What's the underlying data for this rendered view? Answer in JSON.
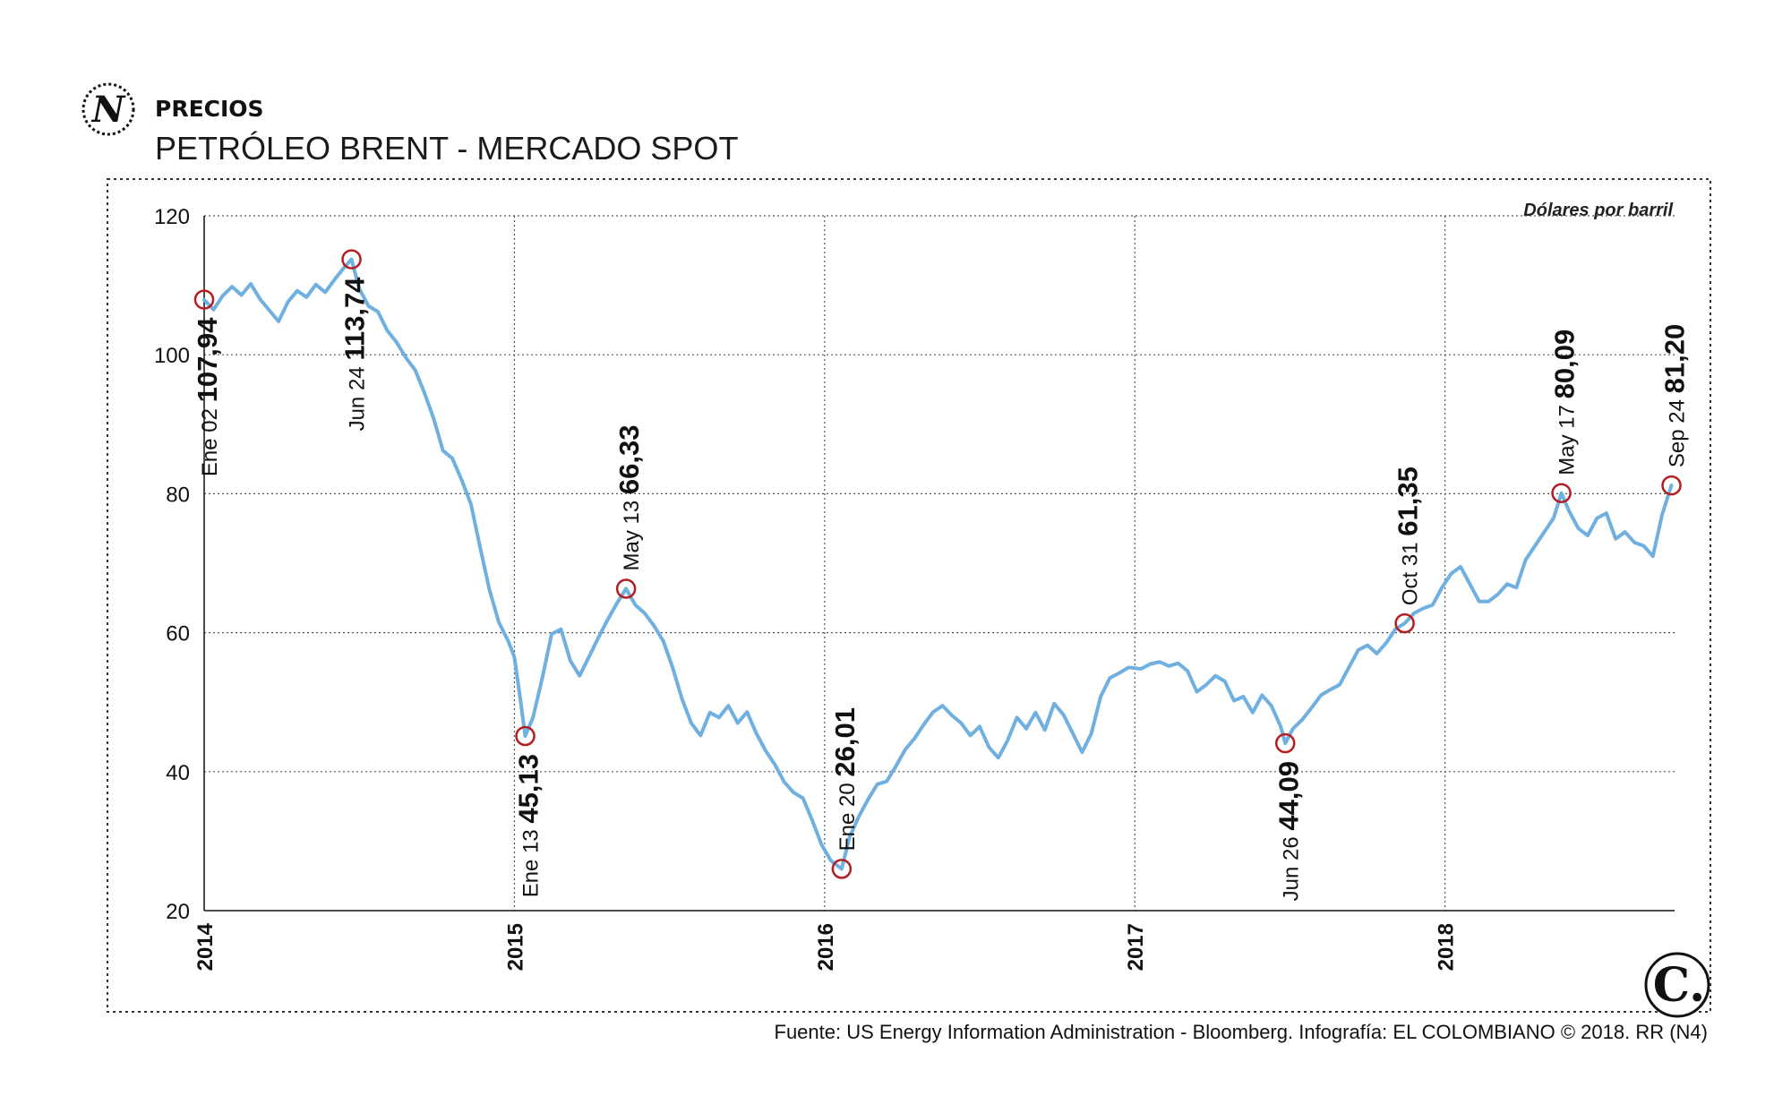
{
  "header": {
    "section": "PRECIOS",
    "title": "PETRÓLEO BRENT - MERCADO SPOT",
    "section_logo_letter": "N"
  },
  "chart_data": {
    "type": "line",
    "title": "PETRÓLEO BRENT - MERCADO SPOT",
    "unit_label": "Dólares por barril",
    "xlim": [
      2014.0,
      2018.74
    ],
    "ylim": [
      20,
      120
    ],
    "x_ticks": [
      "2014",
      "2015",
      "2016",
      "2017",
      "2018"
    ],
    "y_ticks": [
      "20",
      "40",
      "60",
      "80",
      "100",
      "120"
    ],
    "grid": true,
    "line_color": "#6fb0e0",
    "marker_color": "#b51d22",
    "series": [
      {
        "values": [
          [
            2014.0,
            107.9
          ],
          [
            2014.03,
            106.5
          ],
          [
            2014.06,
            108.5
          ],
          [
            2014.09,
            109.8
          ],
          [
            2014.12,
            108.6
          ],
          [
            2014.15,
            110.2
          ],
          [
            2014.18,
            108.0
          ],
          [
            2014.21,
            106.4
          ],
          [
            2014.24,
            104.8
          ],
          [
            2014.27,
            107.6
          ],
          [
            2014.3,
            109.2
          ],
          [
            2014.33,
            108.3
          ],
          [
            2014.36,
            110.1
          ],
          [
            2014.39,
            109.0
          ],
          [
            2014.42,
            110.8
          ],
          [
            2014.45,
            112.5
          ],
          [
            2014.475,
            113.74
          ],
          [
            2014.5,
            109.5
          ],
          [
            2014.53,
            107.0
          ],
          [
            2014.56,
            106.2
          ],
          [
            2014.59,
            103.5
          ],
          [
            2014.62,
            101.8
          ],
          [
            2014.65,
            99.6
          ],
          [
            2014.68,
            97.8
          ],
          [
            2014.71,
            94.5
          ],
          [
            2014.74,
            90.8
          ],
          [
            2014.77,
            86.2
          ],
          [
            2014.8,
            85.1
          ],
          [
            2014.83,
            82.0
          ],
          [
            2014.86,
            78.5
          ],
          [
            2014.89,
            72.2
          ],
          [
            2014.92,
            66.1
          ],
          [
            2014.95,
            61.5
          ],
          [
            2014.98,
            58.8
          ],
          [
            2015.0,
            56.5
          ],
          [
            2015.02,
            50.2
          ],
          [
            2015.035,
            45.13
          ],
          [
            2015.06,
            47.8
          ],
          [
            2015.09,
            53.5
          ],
          [
            2015.12,
            59.8
          ],
          [
            2015.15,
            60.5
          ],
          [
            2015.18,
            56.0
          ],
          [
            2015.21,
            53.8
          ],
          [
            2015.24,
            56.5
          ],
          [
            2015.27,
            59.2
          ],
          [
            2015.3,
            61.8
          ],
          [
            2015.33,
            64.2
          ],
          [
            2015.36,
            66.33
          ],
          [
            2015.39,
            64.0
          ],
          [
            2015.42,
            62.8
          ],
          [
            2015.45,
            61.0
          ],
          [
            2015.48,
            58.8
          ],
          [
            2015.51,
            55.0
          ],
          [
            2015.54,
            50.5
          ],
          [
            2015.57,
            47.0
          ],
          [
            2015.6,
            45.2
          ],
          [
            2015.63,
            48.5
          ],
          [
            2015.66,
            47.8
          ],
          [
            2015.69,
            49.5
          ],
          [
            2015.72,
            47.0
          ],
          [
            2015.75,
            48.6
          ],
          [
            2015.78,
            45.5
          ],
          [
            2015.81,
            43.0
          ],
          [
            2015.84,
            41.0
          ],
          [
            2015.87,
            38.5
          ],
          [
            2015.9,
            37.0
          ],
          [
            2015.93,
            36.2
          ],
          [
            2015.96,
            33.0
          ],
          [
            2015.99,
            29.5
          ],
          [
            2016.02,
            27.2
          ],
          [
            2016.055,
            26.01
          ],
          [
            2016.08,
            30.5
          ],
          [
            2016.11,
            33.5
          ],
          [
            2016.14,
            36.0
          ],
          [
            2016.17,
            38.2
          ],
          [
            2016.2,
            38.6
          ],
          [
            2016.23,
            40.8
          ],
          [
            2016.26,
            43.2
          ],
          [
            2016.29,
            44.8
          ],
          [
            2016.32,
            46.8
          ],
          [
            2016.35,
            48.6
          ],
          [
            2016.38,
            49.5
          ],
          [
            2016.41,
            48.1
          ],
          [
            2016.44,
            47.0
          ],
          [
            2016.47,
            45.2
          ],
          [
            2016.5,
            46.5
          ],
          [
            2016.53,
            43.5
          ],
          [
            2016.56,
            42.0
          ],
          [
            2016.59,
            44.5
          ],
          [
            2016.62,
            47.8
          ],
          [
            2016.65,
            46.2
          ],
          [
            2016.68,
            48.5
          ],
          [
            2016.71,
            46.0
          ],
          [
            2016.74,
            49.8
          ],
          [
            2016.77,
            48.2
          ],
          [
            2016.8,
            45.5
          ],
          [
            2016.83,
            42.8
          ],
          [
            2016.86,
            45.5
          ],
          [
            2016.89,
            50.8
          ],
          [
            2016.92,
            53.5
          ],
          [
            2016.95,
            54.2
          ],
          [
            2016.98,
            55.0
          ],
          [
            2017.02,
            54.8
          ],
          [
            2017.05,
            55.5
          ],
          [
            2017.08,
            55.8
          ],
          [
            2017.11,
            55.2
          ],
          [
            2017.14,
            55.6
          ],
          [
            2017.17,
            54.5
          ],
          [
            2017.2,
            51.5
          ],
          [
            2017.23,
            52.5
          ],
          [
            2017.26,
            53.8
          ],
          [
            2017.29,
            53.0
          ],
          [
            2017.32,
            50.2
          ],
          [
            2017.35,
            50.8
          ],
          [
            2017.38,
            48.5
          ],
          [
            2017.41,
            51.0
          ],
          [
            2017.44,
            49.5
          ],
          [
            2017.47,
            46.5
          ],
          [
            2017.485,
            44.09
          ],
          [
            2017.51,
            46.2
          ],
          [
            2017.54,
            47.5
          ],
          [
            2017.57,
            49.2
          ],
          [
            2017.6,
            51.0
          ],
          [
            2017.63,
            51.8
          ],
          [
            2017.66,
            52.5
          ],
          [
            2017.69,
            55.0
          ],
          [
            2017.72,
            57.5
          ],
          [
            2017.75,
            58.2
          ],
          [
            2017.78,
            57.0
          ],
          [
            2017.81,
            58.5
          ],
          [
            2017.84,
            60.5
          ],
          [
            2017.87,
            61.35
          ],
          [
            2017.9,
            62.8
          ],
          [
            2017.93,
            63.5
          ],
          [
            2017.96,
            64.0
          ],
          [
            2017.99,
            66.5
          ],
          [
            2018.02,
            68.5
          ],
          [
            2018.05,
            69.5
          ],
          [
            2018.08,
            67.0
          ],
          [
            2018.11,
            64.5
          ],
          [
            2018.14,
            64.5
          ],
          [
            2018.17,
            65.5
          ],
          [
            2018.2,
            67.0
          ],
          [
            2018.23,
            66.5
          ],
          [
            2018.26,
            70.5
          ],
          [
            2018.29,
            72.5
          ],
          [
            2018.32,
            74.5
          ],
          [
            2018.35,
            76.5
          ],
          [
            2018.375,
            80.09
          ],
          [
            2018.4,
            77.5
          ],
          [
            2018.43,
            75.0
          ],
          [
            2018.46,
            74.0
          ],
          [
            2018.49,
            76.5
          ],
          [
            2018.52,
            77.2
          ],
          [
            2018.55,
            73.5
          ],
          [
            2018.58,
            74.5
          ],
          [
            2018.61,
            73.0
          ],
          [
            2018.64,
            72.5
          ],
          [
            2018.67,
            71.0
          ],
          [
            2018.7,
            77.0
          ],
          [
            2018.73,
            81.2
          ]
        ]
      }
    ],
    "annotations": [
      {
        "date": "Ene 02",
        "value": "107,94",
        "x": 2014.0,
        "y": 107.94,
        "label_pos": "below"
      },
      {
        "date": "Jun 24",
        "value": "113,74",
        "x": 2014.475,
        "y": 113.74,
        "label_pos": "below"
      },
      {
        "date": "Ene 13",
        "value": "45,13",
        "x": 2015.035,
        "y": 45.13,
        "label_pos": "below"
      },
      {
        "date": "May 13",
        "value": "66,33",
        "x": 2015.36,
        "y": 66.33,
        "label_pos": "above"
      },
      {
        "date": "Ene 20",
        "value": "26,01",
        "x": 2016.055,
        "y": 26.01,
        "label_pos": "above"
      },
      {
        "date": "Jun 26",
        "value": "44,09",
        "x": 2017.485,
        "y": 44.09,
        "label_pos": "below"
      },
      {
        "date": "Oct 31",
        "value": "61,35",
        "x": 2017.87,
        "y": 61.35,
        "label_pos": "above"
      },
      {
        "date": "May 17",
        "value": "80,09",
        "x": 2018.375,
        "y": 80.09,
        "label_pos": "above"
      },
      {
        "date": "Sep 24",
        "value": "81,20",
        "x": 2018.73,
        "y": 81.2,
        "label_pos": "above"
      }
    ]
  },
  "footer": {
    "source": "Fuente: US Energy Information Administration - Bloomberg. Infografía: EL COLOMBIANO © 2018. RR (N4)",
    "brand_logo_text": "C."
  }
}
